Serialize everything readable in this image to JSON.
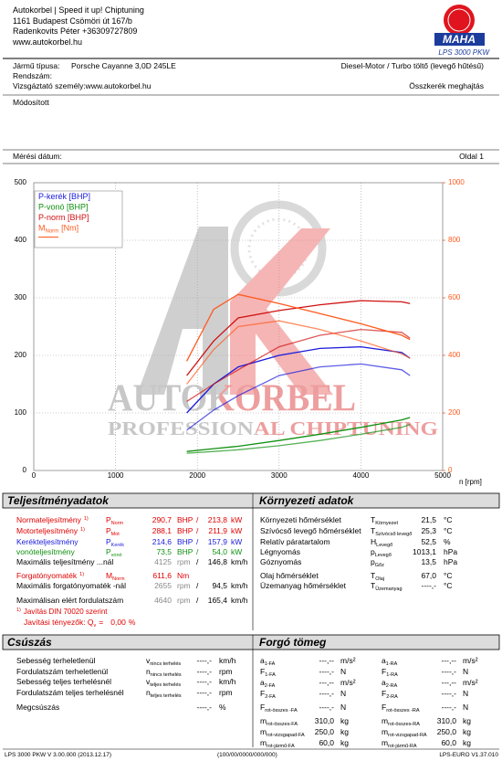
{
  "header": {
    "lines": [
      "Autokorbel | Speed it up! Chiptuning",
      "1161 Budapest Csömöri út 167/b",
      "Radenkovits Péter +36309727809",
      "www.autokorbel.hu"
    ]
  },
  "logo": {
    "brand": "MAHA",
    "model": "LPS 3000 PKW"
  },
  "vehicle": {
    "type_label": "Jármű típusa:",
    "type_value": "Porsche Cayanne 3,0D 245LE",
    "engine": "Diesel-Motor / Turbo töltő (levegő hűtésű)",
    "plate_label": "Rendszám:",
    "examiner": "Vizsgáztató személy:www.autokorbel.hu",
    "drive": "Összkerék meghajtás",
    "note": "Módosított",
    "date_label": "Mérési dátum:",
    "page": "Oldal 1"
  },
  "watermark": {
    "line1": "AUTOKORBEL",
    "line2": "PROFESSIONAL CHIPTUNING"
  },
  "chart_data": {
    "type": "line",
    "x": [
      1870,
      2200,
      2500,
      3000,
      3500,
      4000,
      4500,
      4600
    ],
    "xlim": [
      0,
      5000
    ],
    "xticks": [
      0,
      1000,
      2000,
      3000,
      4000,
      5000
    ],
    "xlabel": "n [rpm]",
    "ylim": [
      0,
      500
    ],
    "yticks": [
      0,
      100,
      200,
      300,
      400,
      500
    ],
    "y2lim": [
      0,
      1000
    ],
    "y2ticks": [
      0,
      200,
      400,
      600,
      800,
      1000
    ],
    "y2color": "#ff5a1e",
    "grid": true,
    "legend": "upper left",
    "series": [
      {
        "name": "P-kerék [BHP]",
        "color": "#1a1adc",
        "runs": [
          [
            100,
            150,
            180,
            200,
            212,
            215,
            205,
            195
          ],
          [
            70,
            105,
            130,
            165,
            180,
            185,
            175,
            165
          ]
        ]
      },
      {
        "name": "P-vonó [BHP]",
        "color": "#109010",
        "runs": [
          [
            33,
            38,
            42,
            52,
            63,
            75,
            88,
            92
          ],
          [
            30,
            33,
            36,
            43,
            52,
            63,
            75,
            80
          ]
        ]
      },
      {
        "name": "P-norm [BHP]",
        "color": "#d01010",
        "runs": [
          [
            165,
            225,
            265,
            278,
            288,
            295,
            293,
            290
          ],
          [
            120,
            150,
            175,
            215,
            235,
            245,
            240,
            230
          ]
        ]
      },
      {
        "name": "M",
        "name_sub": "Norm",
        "name_suffix": "[Nm]",
        "color": "#ff5a1e",
        "axis": "y2",
        "runs": [
          [
            380,
            560,
            612,
            580,
            545,
            510,
            470,
            455
          ],
          [
            300,
            420,
            500,
            520,
            490,
            450,
            405,
            390
          ]
        ]
      }
    ]
  },
  "performance": {
    "title": "Teljesítményadatok",
    "rows": [
      {
        "label": "Normateljesítmény",
        "note": "1)",
        "color": "#e00000",
        "sym": "P",
        "sub": "Norm",
        "v1": "290,7",
        "u1": "BHP",
        "sep": "/",
        "v2": "213,8",
        "u2": "kW"
      },
      {
        "label": "Motorteljesítmény",
        "note": "1)",
        "color": "#e00000",
        "sym": "P",
        "sub": "Mot",
        "v1": "288,1",
        "u1": "BHP",
        "sep": "/",
        "v2": "211,9",
        "u2": "kW"
      },
      {
        "label": "Kerékteljesítmény",
        "color": "#1a1adc",
        "sym": "P",
        "sub": "Kerék",
        "v1": "214,6",
        "u1": "BHP",
        "sep": "/",
        "v2": "157,9",
        "u2": "kW"
      },
      {
        "label": "vonóteljesítmény",
        "color": "#109010",
        "sym": "P",
        "sub": "vonó",
        "v1": "73,5",
        "u1": "BHP",
        "sep": "/",
        "v2": "54,0",
        "u2": "kW"
      },
      {
        "label": "Maximális teljesítmény ...nál",
        "v1": "4125",
        "u1": "rpm",
        "sep": "/",
        "v2": "146,8",
        "u2": "km/h"
      },
      {
        "label": "Forgatónyomaték",
        "note": "1)",
        "color": "#e00000",
        "sym": "M",
        "sub": "Norm",
        "v1": "611,6",
        "u1": "Nm"
      },
      {
        "label": "Maximális forgatónyomaték -nál",
        "v1": "2655",
        "u1": "rpm",
        "sep": "/",
        "v2": "94,5",
        "u2": "km/h"
      },
      {
        "label": "Maximálisan elért fordulatszám",
        "v1": "4640",
        "u1": "rpm",
        "sep": "/",
        "v2": "165,4",
        "u2": "km/h"
      }
    ],
    "footnote": {
      "mark": "1)",
      "text": "Javítás DIN 70020 szerint"
    },
    "factor": {
      "text": "Javítási tényezők: Q",
      "sub": "v",
      "eq": "=",
      "value": "0,00",
      "unit": "%"
    }
  },
  "environment": {
    "title": "Környezeti adatok",
    "rows": [
      {
        "label": "Környezeti hőmérséklet",
        "sym": "T",
        "sub": "Környezet",
        "value": "21,5",
        "unit": "°C"
      },
      {
        "label": "Szívócső levegő hőmérséklet",
        "sym": "T",
        "sub": "Szívócső levegő",
        "value": "25,3",
        "unit": "°C"
      },
      {
        "label": "Relatív páratartalom",
        "sym": "H",
        "sub": "Levegő",
        "value": "52,5",
        "unit": "%"
      },
      {
        "label": "Légnyomás",
        "sym": "p",
        "sub": "Levegő",
        "value": "1013,1",
        "unit": "hPa"
      },
      {
        "label": "Góznyomás",
        "sym": "p",
        "sub": "Gőz",
        "value": "13,5",
        "unit": "hPa"
      },
      {
        "label": "Olaj hőmérséklet",
        "sym": "T",
        "sub": "Olaj",
        "value": "67,0",
        "unit": "°C"
      },
      {
        "label": "Üzemanyag hőmérséklet",
        "sym": "T",
        "sub": "Üzemanyag",
        "value": "----,-",
        "unit": "°C"
      }
    ]
  },
  "slip": {
    "title": "Csúszás",
    "rows": [
      {
        "label": "Sebesség terheletlenül",
        "sym": "v",
        "sub": "nincs terhelés",
        "value": "----,-",
        "unit": "km/h"
      },
      {
        "label": "Fordulatszám terheletlenül",
        "sym": "n",
        "sub": "nincs terhelés",
        "value": "----,-",
        "unit": "rpm"
      },
      {
        "label": "Sebesség teljes terhelésnél",
        "sym": "v",
        "sub": "teljes terhelés",
        "value": "----,-",
        "unit": "km/h"
      },
      {
        "label": "Fordulatszám teljes terhelésnél",
        "sym": "n",
        "sub": "teljes terhelés",
        "value": "----,-",
        "unit": "rpm"
      },
      {
        "label": "Megcsúszás",
        "value": "----,-",
        "unit": "%"
      }
    ]
  },
  "mass": {
    "title": "Forgó tömeg",
    "rows": [
      {
        "left": {
          "sym": "a",
          "sub": "1-FA",
          "value": "---,--",
          "unit": "m/s²"
        },
        "right": {
          "sym": "a",
          "sub": "1-RA",
          "value": "---,--",
          "unit": "m/s²"
        }
      },
      {
        "left": {
          "sym": "F",
          "sub": "1-FA",
          "value": "----,-",
          "unit": "N"
        },
        "right": {
          "sym": "F",
          "sub": "1-RA",
          "value": "----,-",
          "unit": "N"
        }
      },
      {
        "left": {
          "sym": "a",
          "sub": "2-FA",
          "value": "---,--",
          "unit": "m/s²"
        },
        "right": {
          "sym": "a",
          "sub": "2-RA",
          "value": "---,--",
          "unit": "m/s²"
        }
      },
      {
        "left": {
          "sym": "F",
          "sub": "2-FA",
          "value": "----,-",
          "unit": "N"
        },
        "right": {
          "sym": "F",
          "sub": "2-RA",
          "value": "----,-",
          "unit": "N"
        }
      },
      {
        "left": {
          "sym": "F",
          "sub": "rot-összes -FA",
          "value": "----,-",
          "unit": "N"
        },
        "right": {
          "sym": "F",
          "sub": "rot-összes -RA",
          "value": "----,-",
          "unit": "N"
        }
      },
      {
        "left": {
          "sym": "m",
          "sub": "rot-összes-FA",
          "value": "310,0",
          "unit": "kg"
        },
        "right": {
          "sym": "m",
          "sub": "rot-összes-RA",
          "value": "310,0",
          "unit": "kg"
        }
      },
      {
        "left": {
          "sym": "m",
          "sub": "rot-vizsgapad-FA",
          "value": "250,0",
          "unit": "kg"
        },
        "right": {
          "sym": "m",
          "sub": "rot-vizsgapad-RA",
          "value": "250,0",
          "unit": "kg"
        }
      },
      {
        "left": {
          "sym": "m",
          "sub": "rot-jármű-FA",
          "value": "60,0",
          "unit": "kg"
        },
        "right": {
          "sym": "m",
          "sub": "rot-jármű-RA",
          "value": "60,0",
          "unit": "kg"
        }
      }
    ]
  },
  "footer": {
    "left": "LPS 3000 PKW V 3.00.000 (2013.12.17)",
    "center": "(100/00/0000/000/000)",
    "right": "LPS-EURO V1.37.010"
  }
}
